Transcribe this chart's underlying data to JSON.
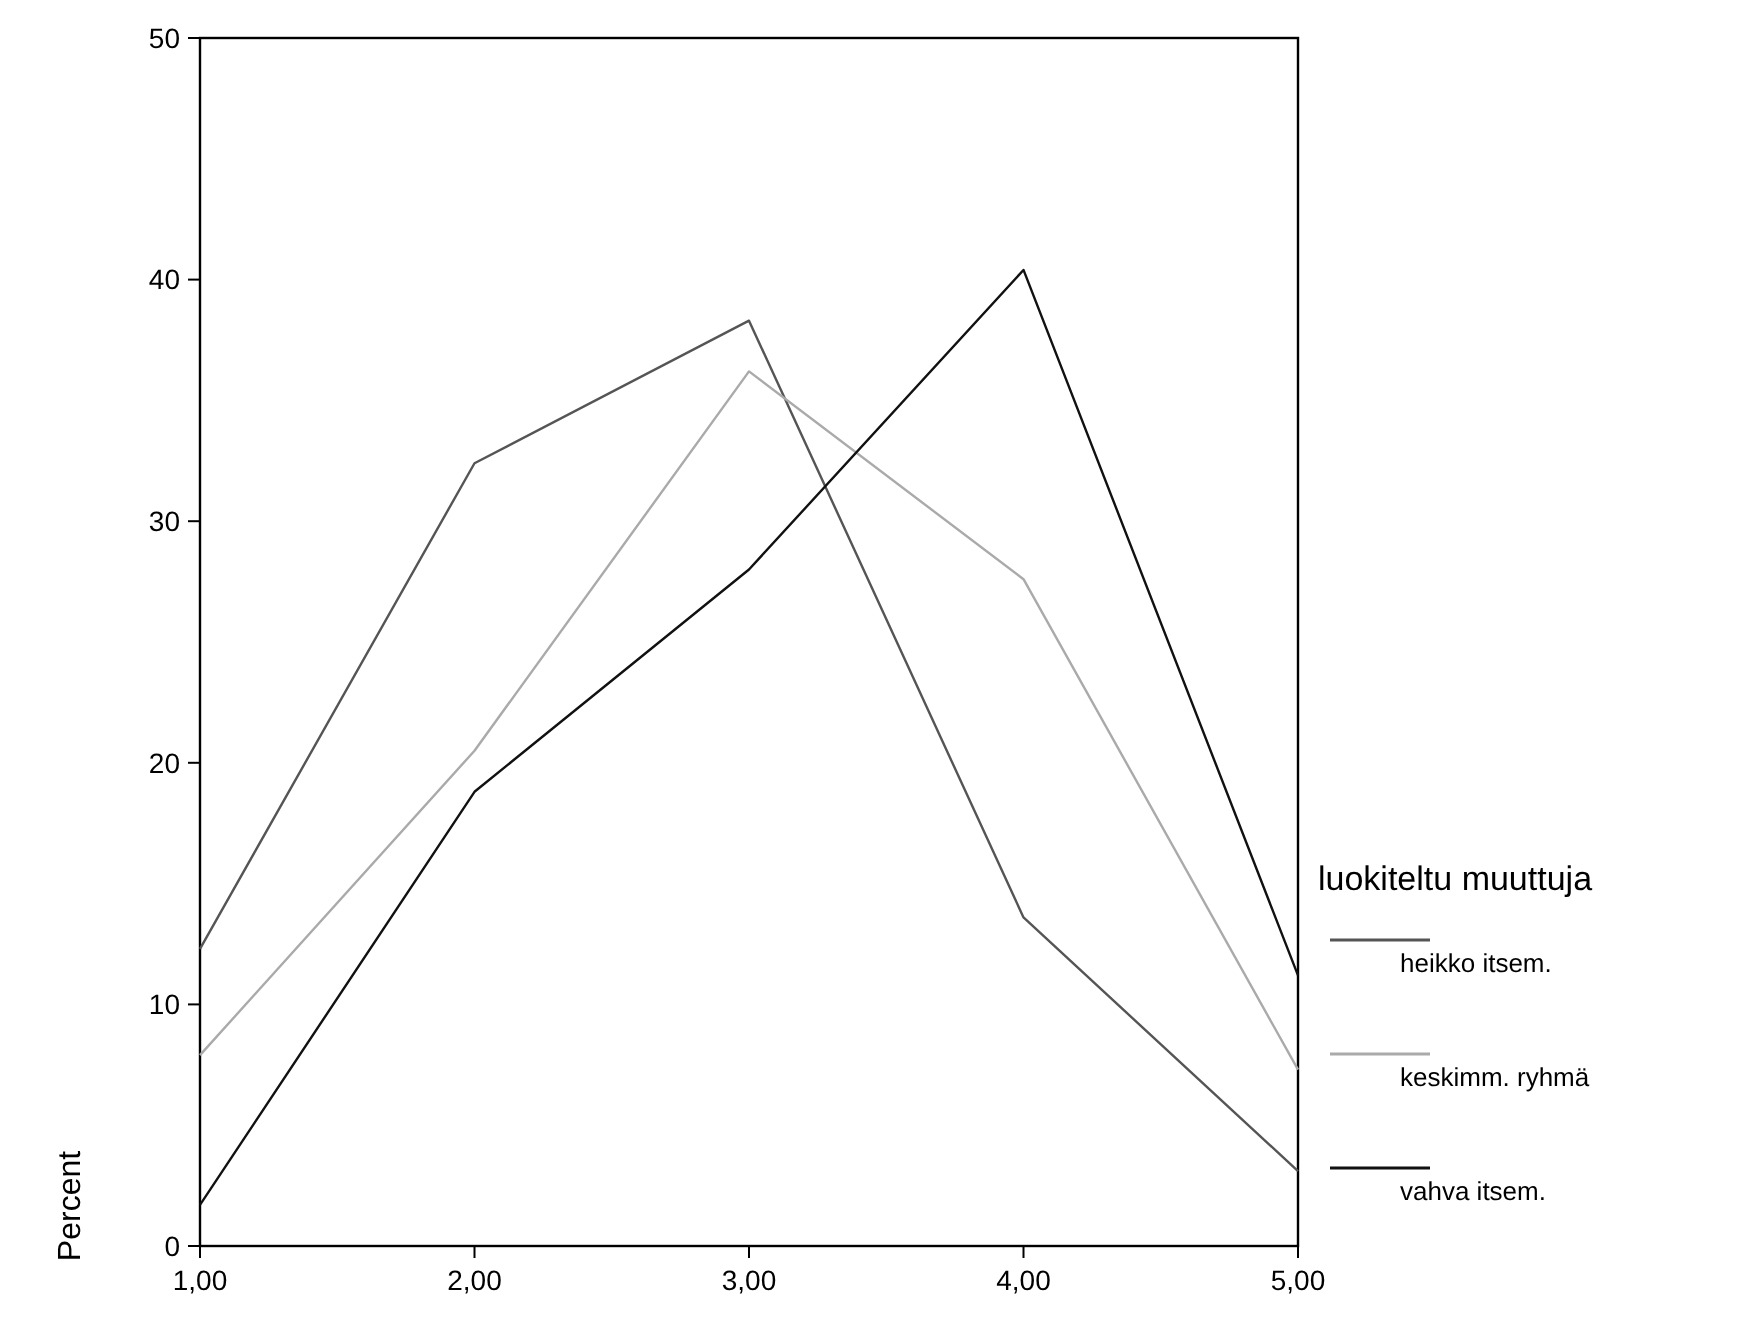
{
  "chart_data": {
    "type": "line",
    "ylabel": "Percent",
    "legend_title": "luokiteltu muuttuja",
    "x": [
      1,
      2,
      3,
      4,
      5
    ],
    "xlim": [
      1,
      5
    ],
    "xticks": [
      {
        "value": 1,
        "label": "1,00"
      },
      {
        "value": 2,
        "label": "2,00"
      },
      {
        "value": 3,
        "label": "3,00"
      },
      {
        "value": 4,
        "label": "4,00"
      },
      {
        "value": 5,
        "label": "5,00"
      }
    ],
    "ylim": [
      0,
      50
    ],
    "yticks": [
      0,
      10,
      20,
      30,
      40,
      50
    ],
    "legend": "right",
    "grid": false,
    "marker": "none",
    "series": [
      {
        "name": "heikko itsem.",
        "color": "#555555",
        "values": [
          12.3,
          32.4,
          38.3,
          13.6,
          3.1
        ]
      },
      {
        "name": "keskimm. ryhmä",
        "color": "#aaaaaa",
        "values": [
          7.9,
          20.5,
          36.2,
          27.6,
          7.3
        ]
      },
      {
        "name": "vahva itsem.",
        "color": "#111111",
        "values": [
          1.7,
          18.8,
          28,
          40.4,
          11.2
        ]
      }
    ]
  }
}
